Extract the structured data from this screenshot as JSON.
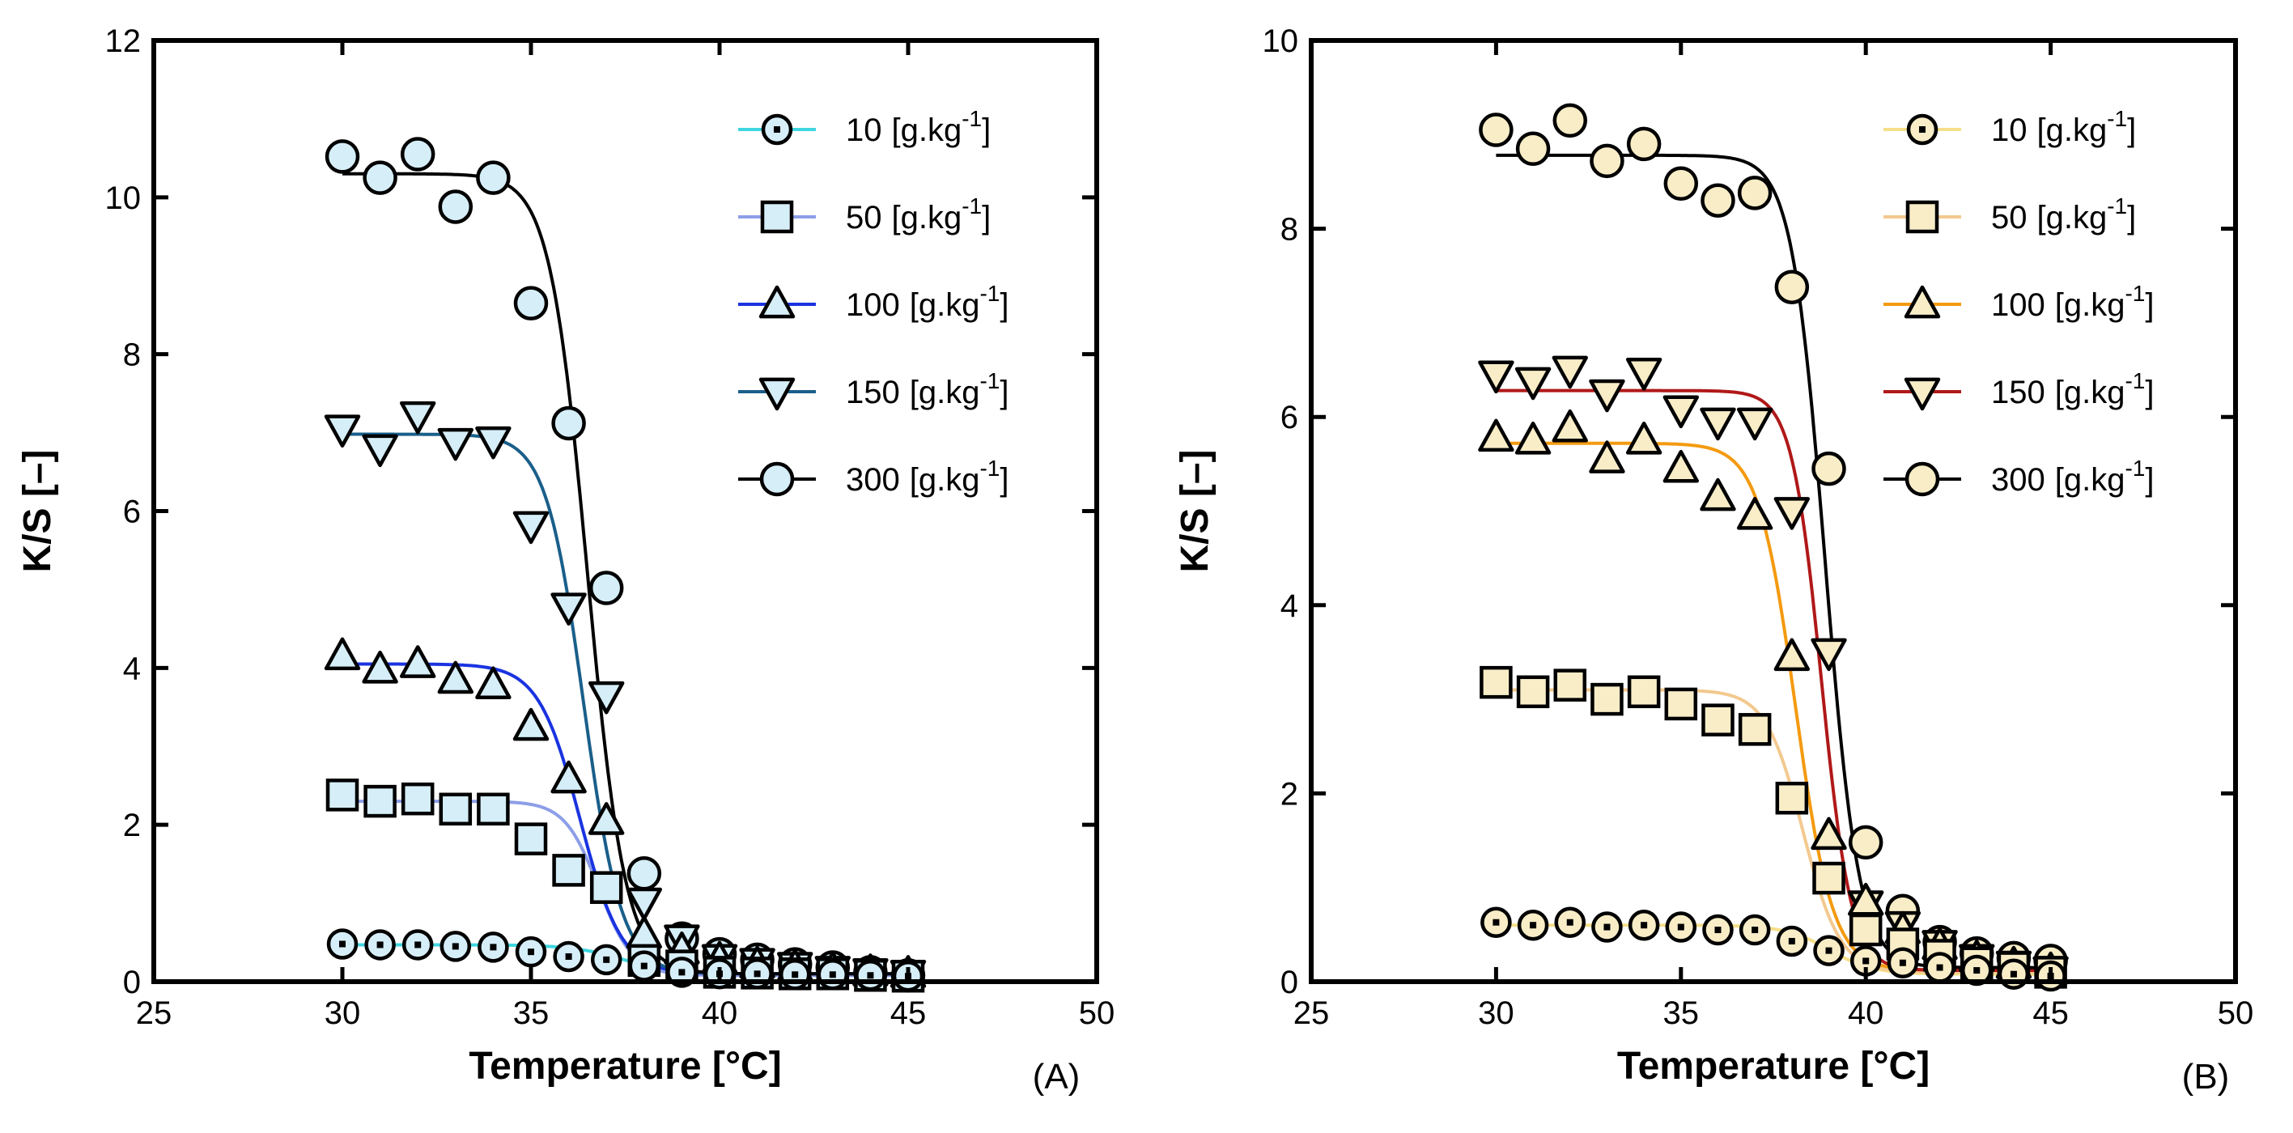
{
  "chart_data": [
    {
      "panel_label": "(A)",
      "type": "scatter",
      "xlabel": "Temperature [°C]",
      "ylabel": "K/S [–]",
      "xlim": [
        25,
        50
      ],
      "ylim": [
        0,
        12
      ],
      "x_ticks": [
        "25",
        "30",
        "35",
        "40",
        "45",
        "50"
      ],
      "y_ticks": [
        "0",
        "2",
        "4",
        "6",
        "8",
        "10",
        "12"
      ],
      "marker_fill": "#d6eef8",
      "legend_position": "top-right",
      "x": [
        30,
        31,
        32,
        33,
        34,
        35,
        36,
        37,
        38,
        39,
        40,
        41,
        42,
        43,
        44,
        45
      ],
      "series": [
        {
          "name": "10",
          "unit_prefix": "[g.kg",
          "unit_exp": "-1",
          "unit_suffix": "]",
          "marker": "dotcircle",
          "line_color": "#3fd6e0",
          "values": [
            0.48,
            0.47,
            0.47,
            0.45,
            0.44,
            0.38,
            0.32,
            0.28,
            0.2,
            0.12,
            0.1,
            0.1,
            0.09,
            0.09,
            0.08,
            0.07
          ],
          "fit": {
            "top": 0.47,
            "bottom": 0.08,
            "mid": 37.5,
            "slope": 0.7
          }
        },
        {
          "name": "50",
          "unit_prefix": "[g.kg",
          "unit_exp": "-1",
          "unit_suffix": "]",
          "marker": "square",
          "line_color": "#8d9ee8",
          "values": [
            2.38,
            2.3,
            2.33,
            2.2,
            2.2,
            1.82,
            1.42,
            1.2,
            0.27,
            0.2,
            0.12,
            0.11,
            0.1,
            0.1,
            0.08,
            0.07
          ],
          "fit": {
            "top": 2.3,
            "bottom": 0.08,
            "mid": 36.8,
            "slope": 0.45
          }
        },
        {
          "name": "100",
          "unit_prefix": "[g.kg",
          "unit_exp": "-1",
          "unit_suffix": "]",
          "marker": "triangle-up",
          "line_color": "#1a33e0",
          "values": [
            4.15,
            3.98,
            4.05,
            3.85,
            3.78,
            3.25,
            2.58,
            2.05,
            0.6,
            0.4,
            0.28,
            0.22,
            0.18,
            0.15,
            0.12,
            0.1
          ],
          "fit": {
            "top": 4.05,
            "bottom": 0.1,
            "mid": 36.3,
            "slope": 0.55
          }
        },
        {
          "name": "150",
          "unit_prefix": "[g.kg",
          "unit_exp": "-1",
          "unit_suffix": "]",
          "marker": "triangle-down",
          "line_color": "#1a5f8a",
          "values": [
            7.05,
            6.8,
            7.22,
            6.88,
            6.9,
            5.82,
            4.78,
            3.65,
            1.02,
            0.55,
            0.3,
            0.25,
            0.2,
            0.15,
            0.12,
            0.1
          ],
          "fit": {
            "top": 6.98,
            "bottom": 0.1,
            "mid": 36.4,
            "slope": 0.5
          }
        },
        {
          "name": "300",
          "unit_prefix": "[g.kg",
          "unit_exp": "-1",
          "unit_suffix": "]",
          "marker": "circle",
          "line_color": "#000000",
          "values": [
            10.52,
            10.25,
            10.55,
            9.88,
            10.25,
            8.65,
            7.12,
            5.02,
            1.38,
            0.55,
            0.35,
            0.28,
            0.22,
            0.18,
            0.12,
            0.08
          ],
          "fit": {
            "top": 10.3,
            "bottom": 0.1,
            "mid": 36.5,
            "slope": 0.5
          }
        }
      ]
    },
    {
      "panel_label": "(B)",
      "type": "scatter",
      "xlabel": "Temperature [°C]",
      "ylabel": "K/S [–]",
      "xlim": [
        25,
        50
      ],
      "ylim": [
        0,
        10
      ],
      "x_ticks": [
        "25",
        "30",
        "35",
        "40",
        "45",
        "50"
      ],
      "y_ticks": [
        "0",
        "2",
        "4",
        "6",
        "8",
        "10"
      ],
      "marker_fill": "#f8edc7",
      "legend_position": "top-right",
      "x": [
        30,
        31,
        32,
        33,
        34,
        35,
        36,
        37,
        38,
        39,
        40,
        41,
        42,
        43,
        44,
        45
      ],
      "series": [
        {
          "name": "10",
          "unit_prefix": "[g.kg",
          "unit_exp": "-1",
          "unit_suffix": "]",
          "marker": "dotcircle",
          "line_color": "#f5df8a",
          "values": [
            0.63,
            0.6,
            0.63,
            0.58,
            0.6,
            0.58,
            0.55,
            0.55,
            0.43,
            0.33,
            0.22,
            0.2,
            0.15,
            0.12,
            0.08,
            0.06
          ],
          "fit": {
            "top": 0.6,
            "bottom": 0.08,
            "mid": 39.0,
            "slope": 0.6
          }
        },
        {
          "name": "50",
          "unit_prefix": "[g.kg",
          "unit_exp": "-1",
          "unit_suffix": "]",
          "marker": "square",
          "line_color": "#f3c98f",
          "values": [
            3.18,
            3.08,
            3.15,
            3.0,
            3.08,
            2.95,
            2.78,
            2.68,
            1.95,
            1.1,
            0.55,
            0.4,
            0.28,
            0.2,
            0.15,
            0.1
          ],
          "fit": {
            "top": 3.1,
            "bottom": 0.1,
            "mid": 38.3,
            "slope": 0.5
          }
        },
        {
          "name": "100",
          "unit_prefix": "[g.kg",
          "unit_exp": "-1",
          "unit_suffix": "]",
          "marker": "triangle-up",
          "line_color": "#f49a10",
          "values": [
            5.78,
            5.75,
            5.88,
            5.55,
            5.75,
            5.45,
            5.15,
            4.95,
            3.45,
            1.55,
            0.85,
            0.55,
            0.38,
            0.25,
            0.18,
            0.12
          ],
          "fit": {
            "top": 5.72,
            "bottom": 0.12,
            "mid": 38.1,
            "slope": 0.5
          }
        },
        {
          "name": "150",
          "unit_prefix": "[g.kg",
          "unit_exp": "-1",
          "unit_suffix": "]",
          "marker": "triangle-down",
          "line_color": "#b01818",
          "values": [
            6.45,
            6.38,
            6.5,
            6.25,
            6.48,
            6.08,
            5.95,
            5.95,
            5.0,
            3.5,
            0.82,
            0.6,
            0.4,
            0.25,
            0.18,
            0.12
          ],
          "fit": {
            "top": 6.28,
            "bottom": 0.12,
            "mid": 38.8,
            "slope": 0.4
          }
        },
        {
          "name": "300",
          "unit_prefix": "[g.kg",
          "unit_exp": "-1",
          "unit_suffix": "]",
          "marker": "circle",
          "line_color": "#000000",
          "values": [
            9.05,
            8.85,
            9.15,
            8.72,
            8.9,
            8.48,
            8.3,
            8.38,
            7.38,
            5.45,
            1.48,
            0.75,
            0.42,
            0.3,
            0.25,
            0.22
          ],
          "fit": {
            "top": 8.78,
            "bottom": 0.15,
            "mid": 38.9,
            "slope": 0.45
          }
        }
      ]
    }
  ]
}
